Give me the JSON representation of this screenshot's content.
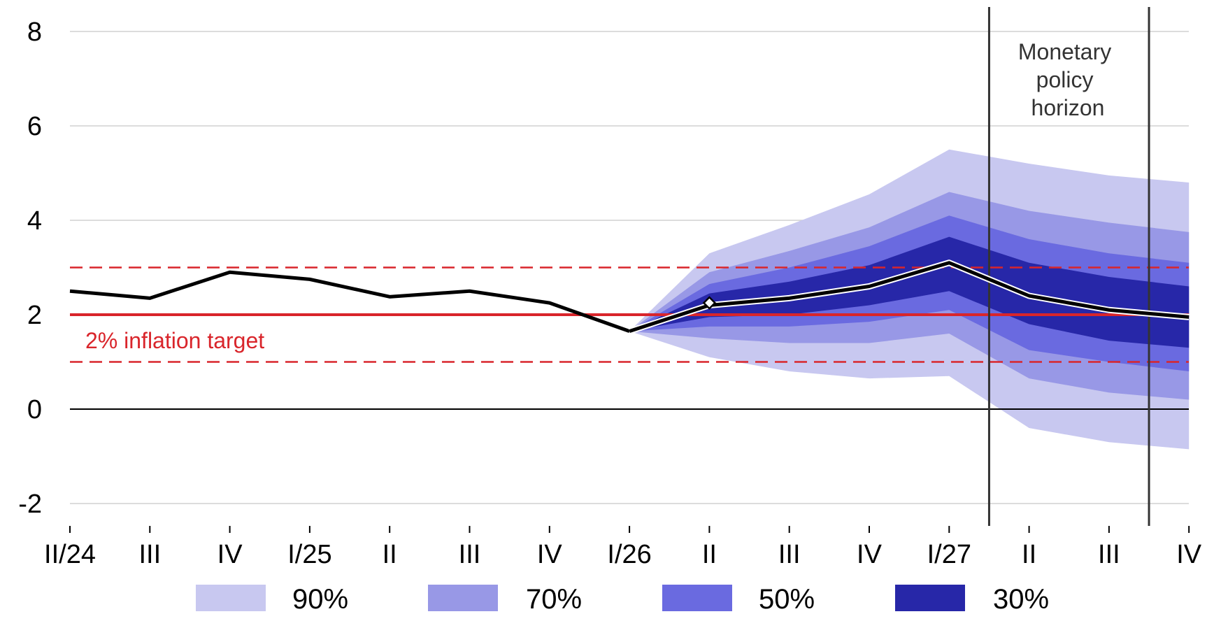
{
  "chart_data": {
    "type": "area",
    "x_labels": [
      "II/24",
      "III",
      "IV",
      "I/25",
      "II",
      "III",
      "IV",
      "I/26",
      "II",
      "III",
      "IV",
      "I/27",
      "II",
      "III",
      "IV"
    ],
    "ylim": [
      -2,
      8
    ],
    "yticks": [
      "-2",
      "0",
      "2",
      "4",
      "6",
      "8"
    ],
    "grid": true,
    "history": [
      2.5,
      2.35,
      2.9,
      2.75,
      2.38,
      2.5,
      2.25,
      1.65
    ],
    "forecast_central": [
      1.65,
      2.2,
      2.35,
      2.6,
      3.1,
      2.4,
      2.1,
      1.95
    ],
    "forecast_start_index": 7,
    "bands": [
      {
        "name": "90%",
        "color": "#c8c8f0",
        "lower": [
          1.65,
          1.1,
          0.8,
          0.65,
          0.7,
          -0.4,
          -0.7,
          -0.85
        ],
        "upper": [
          1.65,
          3.3,
          3.9,
          4.55,
          5.5,
          5.2,
          4.95,
          4.8
        ]
      },
      {
        "name": "70%",
        "color": "#9898e6",
        "lower": [
          1.65,
          1.5,
          1.4,
          1.4,
          1.6,
          0.65,
          0.35,
          0.2
        ],
        "upper": [
          1.65,
          2.9,
          3.35,
          3.85,
          4.6,
          4.2,
          3.95,
          3.75
        ]
      },
      {
        "name": "50%",
        "color": "#6a6ae0",
        "lower": [
          1.65,
          1.75,
          1.75,
          1.85,
          2.1,
          1.25,
          1.0,
          0.8
        ],
        "upper": [
          1.65,
          2.65,
          3.0,
          3.45,
          4.1,
          3.6,
          3.3,
          3.1
        ]
      },
      {
        "name": "30%",
        "color": "#2727a8",
        "lower": [
          1.65,
          1.95,
          2.0,
          2.2,
          2.5,
          1.8,
          1.45,
          1.3
        ],
        "upper": [
          1.65,
          2.45,
          2.7,
          3.05,
          3.65,
          3.1,
          2.8,
          2.6
        ]
      }
    ],
    "target": 2,
    "tolerance_band": [
      1,
      3
    ],
    "marker_index": 8,
    "marker_value": 2.25,
    "horizon_boundaries": [
      11.5,
      13.5
    ],
    "annotations": {
      "target_label": "2% inflation target",
      "horizon_label": [
        "Monetary",
        "policy",
        "horizon"
      ]
    },
    "legend": [
      "90%",
      "70%",
      "50%",
      "30%"
    ],
    "colors": {
      "history": "#000000",
      "target": "#d9252b",
      "horizon_line": "#333333",
      "grid": "#d0d0d0",
      "zero_line": "#000000"
    }
  }
}
